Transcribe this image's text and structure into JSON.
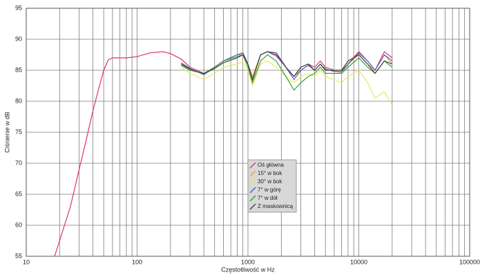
{
  "chart_data": {
    "type": "line",
    "x_label": "Częstotliwość w Hz",
    "y_label": "Ciśnienie w dB",
    "x_log": true,
    "xlim": [
      10,
      100000
    ],
    "xticks": [
      10,
      100,
      1000,
      10000,
      100000
    ],
    "ylim": [
      55,
      95
    ],
    "yticks": [
      55,
      60,
      65,
      70,
      75,
      80,
      85,
      90,
      95
    ],
    "grid": true,
    "legend_position": "center",
    "series": [
      {
        "name": "Oś główna",
        "color": "#e0306a",
        "x": [
          18,
          20,
          25,
          30,
          35,
          40,
          45,
          50,
          55,
          60,
          70,
          80,
          100,
          130,
          170,
          200,
          250,
          300,
          400,
          500,
          600,
          800,
          900,
          1000,
          1100,
          1300,
          1500,
          1800,
          2200,
          2600,
          3000,
          3500,
          4000,
          4500,
          5000,
          6000,
          7000,
          8000,
          10000,
          12000,
          14000,
          17000,
          20000
        ],
        "values": [
          55,
          57.5,
          63,
          69,
          74,
          78.5,
          82,
          85,
          86.7,
          87,
          87,
          87,
          87.2,
          87.8,
          88,
          87.7,
          86.8,
          85.5,
          84.5,
          85.5,
          86.5,
          87.5,
          87.8,
          86,
          83.5,
          87.5,
          88,
          87.3,
          85.5,
          84,
          85.5,
          86,
          85.5,
          86.5,
          85.5,
          85,
          85,
          86,
          88,
          86.5,
          85,
          88,
          87
        ]
      },
      {
        "name": "15° w bok",
        "color": "#f0a040",
        "x": [
          250,
          300,
          400,
          500,
          600,
          800,
          900,
          1000,
          1100,
          1300,
          1500,
          1800,
          2200,
          2600,
          3000,
          3500,
          4000,
          4500,
          5000,
          6000,
          7000,
          8000,
          10000,
          12000,
          14000,
          17000,
          20000
        ],
        "values": [
          86,
          85,
          84.5,
          85.5,
          86.5,
          87.5,
          87.5,
          86,
          84,
          87.5,
          88,
          87.5,
          85.5,
          84,
          85,
          85.8,
          85,
          86,
          85,
          85,
          84.5,
          86,
          87.5,
          86,
          85,
          87.5,
          86
        ]
      },
      {
        "name": "30° w bok",
        "color": "#e8e860",
        "x": [
          250,
          300,
          400,
          500,
          600,
          800,
          900,
          1000,
          1100,
          1300,
          1500,
          1800,
          2200,
          2600,
          3000,
          3500,
          4000,
          4500,
          5000,
          6000,
          7000,
          8000,
          10000,
          12000,
          14000,
          17000,
          20000
        ],
        "values": [
          85.5,
          84.5,
          83.5,
          84.5,
          85.5,
          86,
          86.3,
          85,
          82.5,
          86,
          86.5,
          85.5,
          84,
          83,
          84,
          84.5,
          84,
          85,
          84,
          83.5,
          83,
          84,
          85,
          83,
          80.5,
          81.5,
          79.5
        ]
      },
      {
        "name": "7° w górę",
        "color": "#4060d0",
        "x": [
          250,
          300,
          400,
          500,
          600,
          800,
          900,
          1000,
          1100,
          1300,
          1500,
          1800,
          2200,
          2600,
          3000,
          3500,
          4000,
          4500,
          5000,
          6000,
          7000,
          8000,
          10000,
          12000,
          14000,
          17000,
          20000
        ],
        "values": [
          86.2,
          85.3,
          84.3,
          85.5,
          86.5,
          87.5,
          87.8,
          86,
          83.5,
          87.5,
          88,
          87.5,
          85.5,
          83.5,
          85,
          85.8,
          85,
          86,
          85.2,
          84.8,
          84.8,
          86,
          87.8,
          86.5,
          85,
          87.5,
          86.5
        ]
      },
      {
        "name": "7° w dół",
        "color": "#30a030",
        "x": [
          250,
          300,
          400,
          500,
          600,
          800,
          900,
          1000,
          1100,
          1300,
          1500,
          1800,
          2200,
          2600,
          3000,
          3500,
          4000,
          4500,
          5000,
          6000,
          7000,
          8000,
          10000,
          12000,
          14000,
          17000,
          20000
        ],
        "values": [
          85.8,
          85,
          84.5,
          85.5,
          86.5,
          87.2,
          87.5,
          85.5,
          83,
          86.5,
          87.5,
          86.5,
          84,
          81.8,
          83,
          84,
          84.5,
          85.5,
          84.5,
          84.5,
          84.5,
          85.5,
          87,
          85.5,
          84.5,
          86.5,
          85.5
        ]
      },
      {
        "name": "Z maskownicą",
        "color": "#404040",
        "x": [
          250,
          300,
          400,
          500,
          600,
          800,
          900,
          1000,
          1100,
          1300,
          1500,
          1800,
          2200,
          2600,
          3000,
          3500,
          4000,
          4500,
          5000,
          6000,
          7000,
          8000,
          10000,
          12000,
          14000,
          17000,
          20000
        ],
        "values": [
          86,
          85.2,
          84.4,
          85.3,
          86.2,
          87,
          87.5,
          86,
          83.5,
          87.5,
          88,
          87.8,
          85.5,
          84,
          85.5,
          86,
          85,
          86,
          85,
          85,
          85,
          86.5,
          87.5,
          86,
          84.5,
          86.5,
          86
        ]
      }
    ]
  }
}
